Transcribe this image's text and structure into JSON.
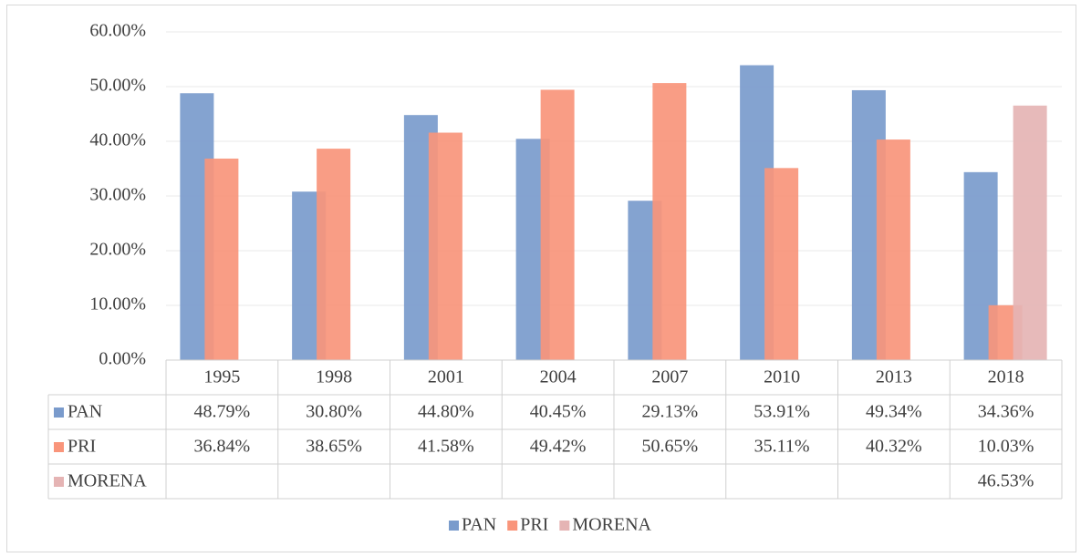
{
  "chart_data": {
    "type": "bar",
    "categories": [
      "1995",
      "1998",
      "2001",
      "2004",
      "2007",
      "2010",
      "2013",
      "2018"
    ],
    "series": [
      {
        "name": "PAN",
        "color": "#7a9bcc",
        "values": [
          48.79,
          30.8,
          44.8,
          40.45,
          29.13,
          53.91,
          49.34,
          34.36
        ],
        "value_labels": [
          "48.79%",
          "30.80%",
          "44.80%",
          "40.45%",
          "29.13%",
          "53.91%",
          "49.34%",
          "34.36%"
        ]
      },
      {
        "name": "PRI",
        "color": "#f9957b",
        "values": [
          36.84,
          38.65,
          41.58,
          49.42,
          50.65,
          35.11,
          40.32,
          10.03
        ],
        "value_labels": [
          "36.84%",
          "38.65%",
          "41.58%",
          "49.42%",
          "50.65%",
          "35.11%",
          "40.32%",
          "10.03%"
        ]
      },
      {
        "name": "MORENA",
        "color": "#e5b4b4",
        "values": [
          null,
          null,
          null,
          null,
          null,
          null,
          null,
          46.53
        ],
        "value_labels": [
          null,
          null,
          null,
          null,
          null,
          null,
          null,
          "46.53%"
        ]
      }
    ],
    "ylim": [
      0,
      60
    ],
    "yticks": [
      {
        "value": 0,
        "label": "0.00%"
      },
      {
        "value": 10,
        "label": "10.00%"
      },
      {
        "value": 20,
        "label": "20.00%"
      },
      {
        "value": 30,
        "label": "30.00%"
      },
      {
        "value": 40,
        "label": "40.00%"
      },
      {
        "value": 50,
        "label": "50.00%"
      },
      {
        "value": 60,
        "label": "60.00%"
      }
    ],
    "grid": true,
    "legend": "bottom",
    "data_table": true
  }
}
